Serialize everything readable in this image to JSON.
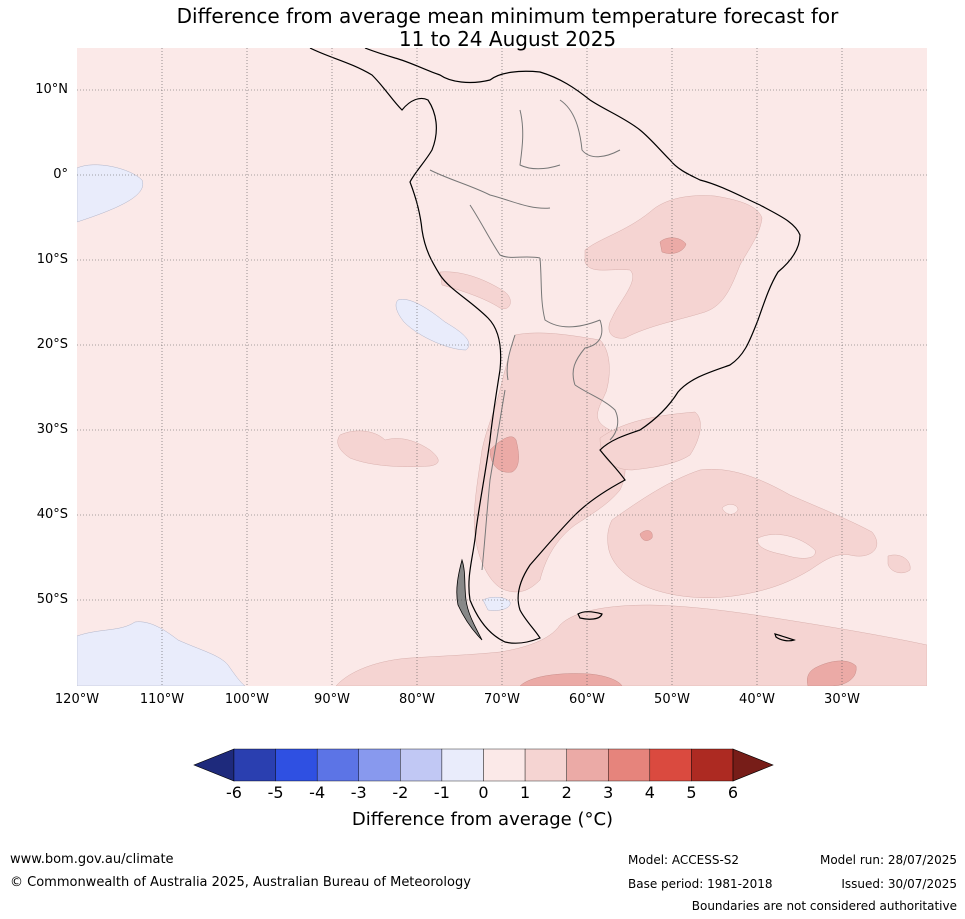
{
  "title": {
    "line1": "Difference from average mean minimum temperature forecast for",
    "line2": "11 to 24 August 2025"
  },
  "map": {
    "lat_labels": [
      "10°N",
      "0°",
      "10°S",
      "20°S",
      "30°S",
      "40°S",
      "50°S"
    ],
    "lon_labels": [
      "120°W",
      "110°W",
      "100°W",
      "90°W",
      "80°W",
      "70°W",
      "60°W",
      "50°W",
      "40°W",
      "30°W"
    ],
    "background_anomaly_color": "#fbe9e8"
  },
  "colorbar": {
    "ticks": [
      "-6",
      "-5",
      "-4",
      "-3",
      "-2",
      "-1",
      "0",
      "1",
      "2",
      "3",
      "4",
      "5",
      "6"
    ],
    "colors": [
      "#1e2a7c",
      "#2a3fb0",
      "#2f50e2",
      "#5c74e6",
      "#8899ee",
      "#c1c8f4",
      "#e9ecfb",
      "#fbe9e8",
      "#f5d4d2",
      "#ebaaa6",
      "#e6847c",
      "#da4a3f",
      "#ad2a22",
      "#771d18"
    ],
    "label": "Difference from average (°C)"
  },
  "footer": {
    "url": "www.bom.gov.au/climate",
    "copyright": "© Commonwealth of Australia 2025, Australian Bureau of Meteorology",
    "model": "Model: ACCESS-S2",
    "base_period": "Base period: 1981-2018",
    "model_run": "Model run: 28/07/2025",
    "issued": "Issued: 30/07/2025",
    "disclaimer": "Boundaries are not considered authoritative"
  }
}
